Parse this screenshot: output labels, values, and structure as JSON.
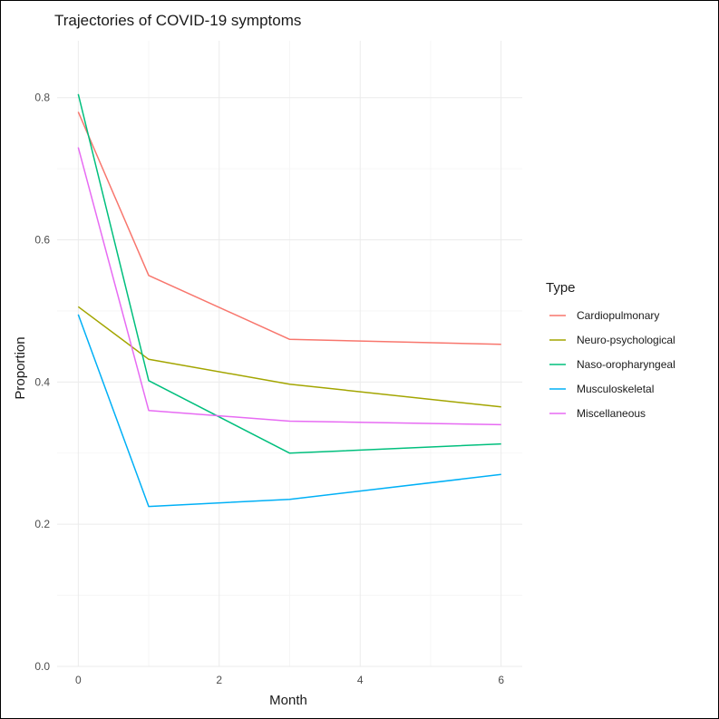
{
  "chart_data": {
    "type": "line",
    "title": "Trajectories of COVID-19 symptoms",
    "xlabel": "Month",
    "ylabel": "Proportion",
    "x": [
      0,
      1,
      3,
      6
    ],
    "xlim": [
      -0.3,
      6.3
    ],
    "ylim": [
      0.0,
      0.88
    ],
    "xticks": [
      "0",
      "2",
      "4",
      "6"
    ],
    "xtick_values": [
      0,
      2,
      4,
      6
    ],
    "yticks": [
      "0.0",
      "0.2",
      "0.4",
      "0.6",
      "0.8"
    ],
    "ytick_values": [
      0.0,
      0.2,
      0.4,
      0.6,
      0.8
    ],
    "grid": true,
    "legend_title": "Type",
    "legend_position": "right",
    "series": [
      {
        "name": "Cardiopulmonary",
        "color": "#F8766D",
        "values": [
          0.78,
          0.55,
          0.46,
          0.453
        ]
      },
      {
        "name": "Neuro-psychological",
        "color": "#A3A500",
        "values": [
          0.506,
          0.432,
          0.397,
          0.365
        ]
      },
      {
        "name": "Naso-oropharyngeal",
        "color": "#00BF7D",
        "values": [
          0.805,
          0.402,
          0.3,
          0.313
        ]
      },
      {
        "name": "Musculoskeletal",
        "color": "#00B0F6",
        "values": [
          0.495,
          0.225,
          0.235,
          0.27
        ]
      },
      {
        "name": "Miscellaneous",
        "color": "#E76BF3",
        "values": [
          0.73,
          0.36,
          0.345,
          0.34
        ]
      }
    ]
  }
}
